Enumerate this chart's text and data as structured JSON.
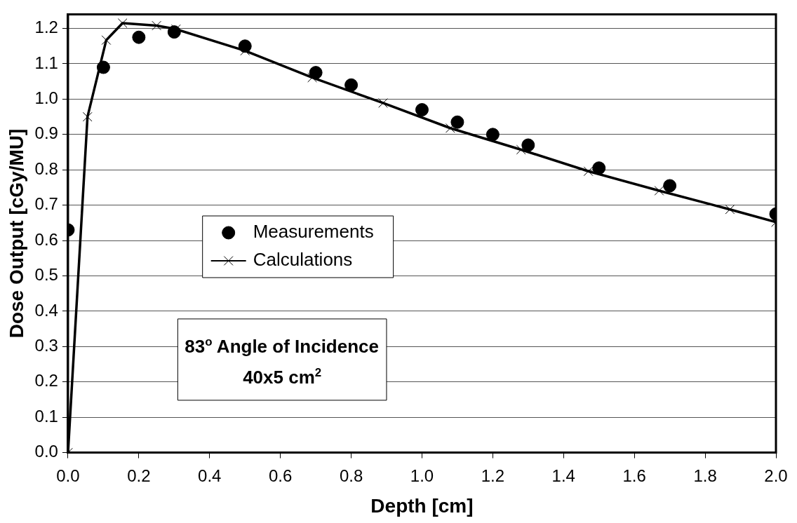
{
  "chart_data": {
    "type": "scatter",
    "xlabel": "Depth [cm]",
    "ylabel": "Dose Output [cGy/MU]",
    "xlim": [
      0,
      2
    ],
    "xticks": [
      {
        "value": 0,
        "label": "0.0"
      },
      {
        "value": 0.2,
        "label": "0.2"
      },
      {
        "value": 0.4,
        "label": "0.4"
      },
      {
        "value": 0.6,
        "label": "0.6"
      },
      {
        "value": 0.8,
        "label": "0.8"
      },
      {
        "value": 1,
        "label": "1.0"
      },
      {
        "value": 1.2,
        "label": "1.2"
      },
      {
        "value": 1.4,
        "label": "1.4"
      },
      {
        "value": 1.6,
        "label": "1.6"
      },
      {
        "value": 1.8,
        "label": "1.8"
      },
      {
        "value": 2,
        "label": "2.0"
      }
    ],
    "ylim": [
      0,
      1.24
    ],
    "yticks": [
      {
        "value": 0,
        "label": "0.0"
      },
      {
        "value": 0.1,
        "label": "0.1"
      },
      {
        "value": 0.2,
        "label": "0.2"
      },
      {
        "value": 0.3,
        "label": "0.3"
      },
      {
        "value": 0.4,
        "label": "0.4"
      },
      {
        "value": 0.5,
        "label": "0.5"
      },
      {
        "value": 0.6,
        "label": "0.6"
      },
      {
        "value": 0.7,
        "label": "0.7"
      },
      {
        "value": 0.8,
        "label": "0.8"
      },
      {
        "value": 0.9,
        "label": "0.9"
      },
      {
        "value": 1,
        "label": "1.0"
      },
      {
        "value": 1.1,
        "label": "1.1"
      },
      {
        "value": 1.2,
        "label": "1.2"
      }
    ],
    "grid": "y",
    "legend": "center",
    "series": [
      {
        "name": "Measurements",
        "marker": "circle",
        "color": "#000000",
        "x": [
          0,
          0.1,
          0.2,
          0.3,
          0.5,
          0.7,
          0.8,
          1.0,
          1.1,
          1.2,
          1.3,
          1.5,
          1.7,
          2.0
        ],
        "values": [
          0.63,
          1.09,
          1.175,
          1.19,
          1.15,
          1.075,
          1.04,
          0.97,
          0.935,
          0.9,
          0.87,
          0.805,
          0.755,
          0.675
        ]
      },
      {
        "name": "Calculations",
        "type": "line",
        "marker": "cross",
        "line_style": "solid",
        "color": "#000000",
        "x": [
          0,
          0.055,
          0.108,
          0.154,
          0.25,
          0.305,
          0.5,
          0.69,
          0.89,
          1.08,
          1.28,
          1.47,
          1.67,
          1.87,
          2.0
        ],
        "values": [
          0,
          0.95,
          1.167,
          1.215,
          1.208,
          1.198,
          1.137,
          1.061,
          0.989,
          0.918,
          0.857,
          0.796,
          0.741,
          0.688,
          0.652
        ]
      }
    ],
    "annotations": [
      "83$^{o}$ Angle of Incidence",
      "40x5 cm$^{2}$"
    ]
  }
}
